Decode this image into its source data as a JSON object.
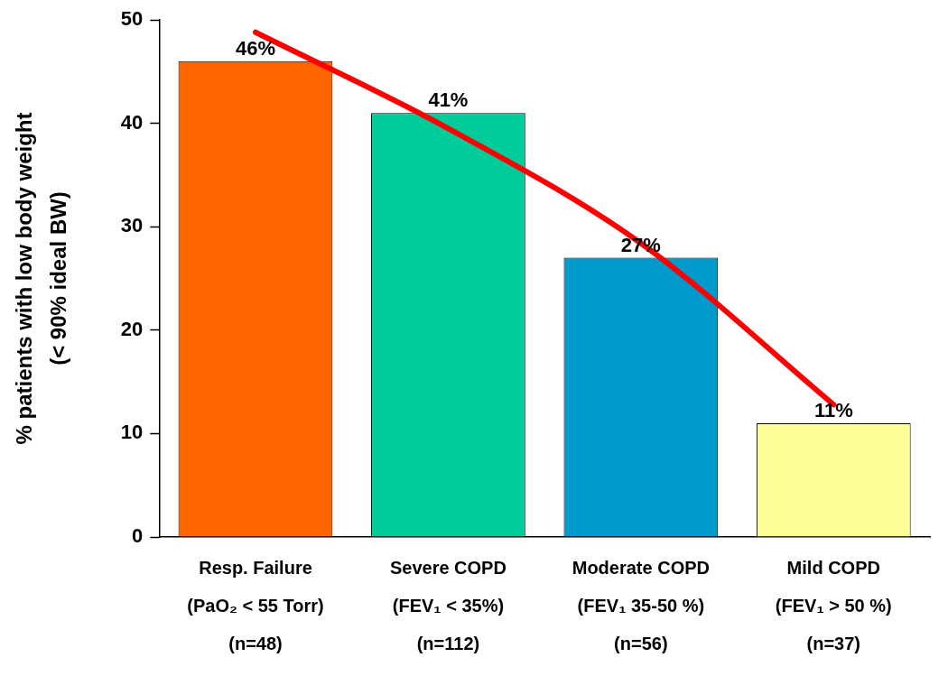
{
  "chart_data": {
    "type": "bar",
    "categories": [
      "Resp. Failure\n(PaO₂ < 55 Torr)\n(n=48)",
      "Severe COPD\n(FEV₁ < 35%)\n(n=112)",
      "Moderate COPD\n(FEV₁ 35-50 %)\n(n=56)",
      "Mild COPD\n(FEV₁ > 50 %)\n(n=37)"
    ],
    "series": [
      {
        "colors": [
          "#ff6600",
          "#00cc99",
          "#0099cc",
          "#ffff99"
        ],
        "values": [
          46,
          41,
          27,
          11
        ],
        "value_labels": [
          "46%",
          "41%",
          "27%",
          "11%"
        ]
      },
      {
        "type": "line",
        "color": "#ff0000",
        "values": [
          48.8,
          39.5,
          28.4,
          12.8
        ]
      }
    ],
    "ylabel": "% patients with low body weight\n(< 90% ideal BW)",
    "ylim": [
      0,
      50
    ],
    "yticks": [
      0,
      10,
      20,
      30,
      40,
      50
    ],
    "grid": false,
    "legend": false,
    "marker": "none",
    "line_style": "solid"
  }
}
